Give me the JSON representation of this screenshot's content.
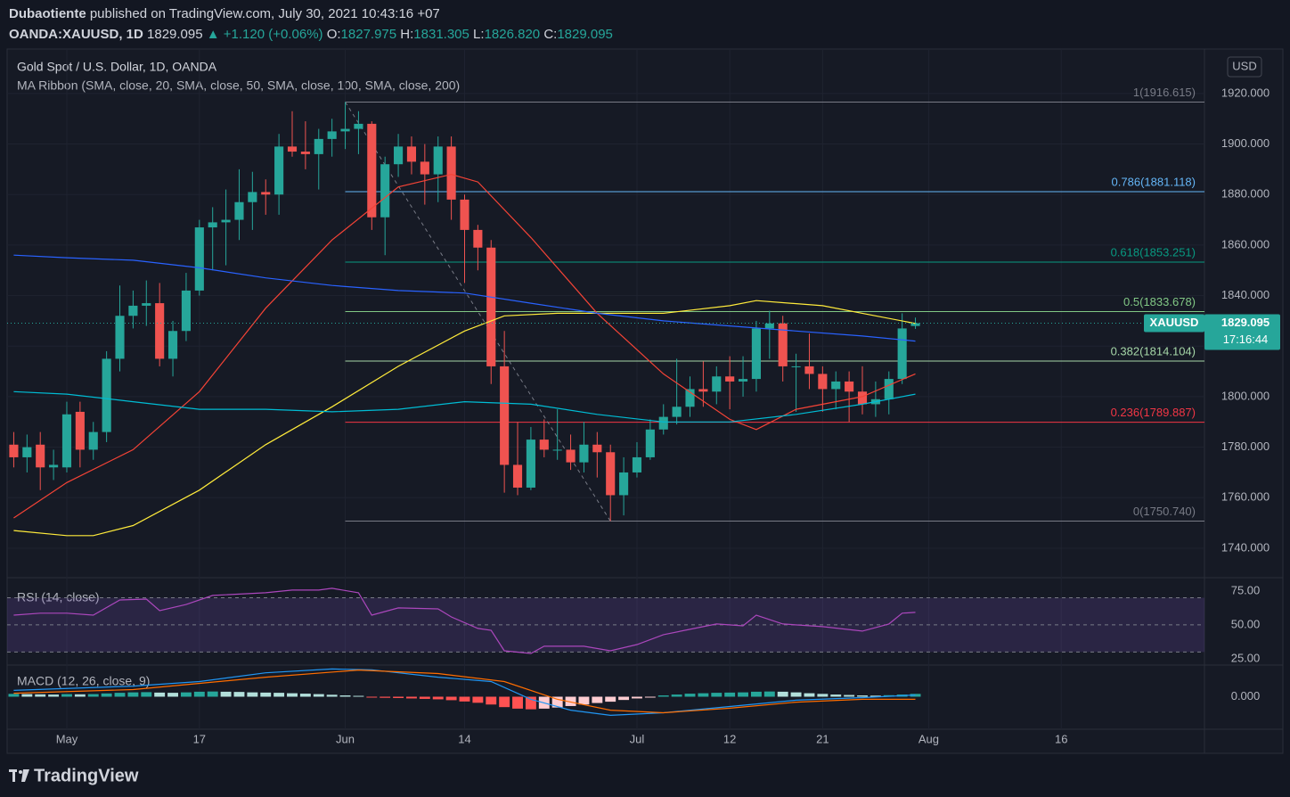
{
  "header": {
    "author": "Dubaotiente",
    "published": "published on TradingView.com, July 30, 2021 10:43:16 +07",
    "symbol": "OANDA:XAUUSD, 1D",
    "last": "1829.095",
    "change": "▲ +1.120 (+0.06%)",
    "ohlc": [
      {
        "key": "O:",
        "value": "1827.975"
      },
      {
        "key": "H:",
        "value": "1831.305"
      },
      {
        "key": "L:",
        "value": "1826.820"
      },
      {
        "key": "C:",
        "value": "1829.095"
      }
    ]
  },
  "footer": {
    "logo": "TradingView"
  },
  "chart_data": [
    {
      "type": "candlestick",
      "title": "Gold Spot / U.S. Dollar, 1D, OANDA",
      "subtitle": "MA Ribbon (SMA, close, 20, SMA, close, 50, SMA, close, 100, SMA, close, 200)",
      "currency": "USD",
      "up_color": "#26a69a",
      "down_color": "#ef5350",
      "grid": true,
      "xlim": [
        0.5,
        90.8
      ],
      "ylim": [
        1729.4,
        1937.6
      ],
      "yticks": [
        {
          "value": 1740,
          "label": "1740.000"
        },
        {
          "value": 1760,
          "label": "1760.000"
        },
        {
          "value": 1780,
          "label": "1780.000"
        },
        {
          "value": 1800,
          "label": "1800.000"
        },
        {
          "value": 1820,
          "label": "1820.000"
        },
        {
          "value": 1840,
          "label": "1840.000"
        },
        {
          "value": 1860,
          "label": "1860.000"
        },
        {
          "value": 1880,
          "label": "1880.000"
        },
        {
          "value": 1900,
          "label": "1900.000"
        },
        {
          "value": 1920,
          "label": "1920.000"
        }
      ],
      "x": [
        1,
        2,
        3,
        4,
        5,
        6,
        7,
        8,
        9,
        10,
        11,
        12,
        13,
        14,
        15,
        16,
        17,
        18,
        19,
        20,
        21,
        22,
        23,
        24,
        25,
        26,
        27,
        28,
        29,
        30,
        31,
        32,
        33,
        34,
        35,
        36,
        37,
        38,
        39,
        40,
        41,
        42,
        43,
        44,
        45,
        46,
        47,
        48,
        49,
        50,
        51,
        52,
        53,
        54,
        55,
        56,
        57,
        58,
        59,
        60,
        61,
        62,
        63,
        64,
        65,
        66,
        67,
        68,
        69
      ],
      "candles": [
        {
          "o": 1781,
          "h": 1786,
          "l": 1772,
          "c": 1776
        },
        {
          "o": 1776,
          "h": 1785,
          "l": 1770,
          "c": 1780
        },
        {
          "o": 1781,
          "h": 1786,
          "l": 1763,
          "c": 1772
        },
        {
          "o": 1772,
          "h": 1779,
          "l": 1767,
          "c": 1773
        },
        {
          "o": 1772,
          "h": 1798,
          "l": 1770,
          "c": 1793
        },
        {
          "o": 1794,
          "h": 1798,
          "l": 1772,
          "c": 1779
        },
        {
          "o": 1779,
          "h": 1790,
          "l": 1775,
          "c": 1786
        },
        {
          "o": 1786,
          "h": 1818,
          "l": 1782,
          "c": 1815
        },
        {
          "o": 1815,
          "h": 1844,
          "l": 1810,
          "c": 1832
        },
        {
          "o": 1832,
          "h": 1842,
          "l": 1827,
          "c": 1836
        },
        {
          "o": 1836,
          "h": 1846,
          "l": 1828,
          "c": 1837
        },
        {
          "o": 1837,
          "h": 1845,
          "l": 1812,
          "c": 1815
        },
        {
          "o": 1815,
          "h": 1830,
          "l": 1808,
          "c": 1826
        },
        {
          "o": 1826,
          "h": 1849,
          "l": 1822,
          "c": 1842
        },
        {
          "o": 1842,
          "h": 1870,
          "l": 1840,
          "c": 1867
        },
        {
          "o": 1867,
          "h": 1875,
          "l": 1850,
          "c": 1869
        },
        {
          "o": 1869,
          "h": 1882,
          "l": 1852,
          "c": 1870
        },
        {
          "o": 1870,
          "h": 1890,
          "l": 1862,
          "c": 1877
        },
        {
          "o": 1877,
          "h": 1889,
          "l": 1866,
          "c": 1881
        },
        {
          "o": 1881,
          "h": 1886,
          "l": 1872,
          "c": 1880
        },
        {
          "o": 1880,
          "h": 1904,
          "l": 1872,
          "c": 1899
        },
        {
          "o": 1899,
          "h": 1913,
          "l": 1895,
          "c": 1897
        },
        {
          "o": 1897,
          "h": 1909,
          "l": 1890,
          "c": 1896
        },
        {
          "o": 1896,
          "h": 1906,
          "l": 1882,
          "c": 1902
        },
        {
          "o": 1902,
          "h": 1910,
          "l": 1895,
          "c": 1905
        },
        {
          "o": 1905,
          "h": 1916.615,
          "l": 1898,
          "c": 1906
        },
        {
          "o": 1906,
          "h": 1913,
          "l": 1896,
          "c": 1908
        },
        {
          "o": 1908,
          "h": 1909,
          "l": 1866,
          "c": 1871
        },
        {
          "o": 1871,
          "h": 1895,
          "l": 1856,
          "c": 1892
        },
        {
          "o": 1892,
          "h": 1904,
          "l": 1887,
          "c": 1899
        },
        {
          "o": 1899,
          "h": 1903,
          "l": 1888,
          "c": 1893
        },
        {
          "o": 1893,
          "h": 1900,
          "l": 1876,
          "c": 1888
        },
        {
          "o": 1888,
          "h": 1903,
          "l": 1877,
          "c": 1899
        },
        {
          "o": 1899,
          "h": 1903,
          "l": 1870,
          "c": 1878
        },
        {
          "o": 1878,
          "h": 1880,
          "l": 1845,
          "c": 1866
        },
        {
          "o": 1866,
          "h": 1868,
          "l": 1850,
          "c": 1859
        },
        {
          "o": 1859,
          "h": 1862,
          "l": 1805,
          "c": 1812
        },
        {
          "o": 1812,
          "h": 1826,
          "l": 1762,
          "c": 1773
        },
        {
          "o": 1773,
          "h": 1790,
          "l": 1761,
          "c": 1764
        },
        {
          "o": 1764,
          "h": 1788,
          "l": 1763,
          "c": 1783
        },
        {
          "o": 1783,
          "h": 1791,
          "l": 1776,
          "c": 1779
        },
        {
          "o": 1779,
          "h": 1795,
          "l": 1775,
          "c": 1779
        },
        {
          "o": 1779,
          "h": 1785,
          "l": 1771,
          "c": 1774
        },
        {
          "o": 1774,
          "h": 1790,
          "l": 1770,
          "c": 1781
        },
        {
          "o": 1781,
          "h": 1786,
          "l": 1768,
          "c": 1778
        },
        {
          "o": 1778,
          "h": 1781,
          "l": 1750.74,
          "c": 1761
        },
        {
          "o": 1761,
          "h": 1776,
          "l": 1753,
          "c": 1770
        },
        {
          "o": 1770,
          "h": 1782,
          "l": 1768,
          "c": 1776
        },
        {
          "o": 1776,
          "h": 1791,
          "l": 1775,
          "c": 1787
        },
        {
          "o": 1787,
          "h": 1797,
          "l": 1785,
          "c": 1792
        },
        {
          "o": 1792,
          "h": 1815,
          "l": 1789,
          "c": 1796
        },
        {
          "o": 1796,
          "h": 1808,
          "l": 1792,
          "c": 1803
        },
        {
          "o": 1803,
          "h": 1814,
          "l": 1796,
          "c": 1802
        },
        {
          "o": 1802,
          "h": 1812,
          "l": 1797,
          "c": 1808
        },
        {
          "o": 1808,
          "h": 1816,
          "l": 1795,
          "c": 1806
        },
        {
          "o": 1806,
          "h": 1816,
          "l": 1800,
          "c": 1807
        },
        {
          "o": 1807,
          "h": 1830,
          "l": 1802,
          "c": 1827
        },
        {
          "o": 1827,
          "h": 1834,
          "l": 1815,
          "c": 1829
        },
        {
          "o": 1829,
          "h": 1832,
          "l": 1806,
          "c": 1812
        },
        {
          "o": 1812,
          "h": 1817,
          "l": 1794,
          "c": 1812
        },
        {
          "o": 1812,
          "h": 1825,
          "l": 1803,
          "c": 1809
        },
        {
          "o": 1809,
          "h": 1812,
          "l": 1794,
          "c": 1803
        },
        {
          "o": 1803,
          "h": 1810,
          "l": 1795,
          "c": 1806
        },
        {
          "o": 1806,
          "h": 1810,
          "l": 1790,
          "c": 1802
        },
        {
          "o": 1802,
          "h": 1812,
          "l": 1793,
          "c": 1797
        },
        {
          "o": 1797,
          "h": 1806,
          "l": 1792,
          "c": 1799
        },
        {
          "o": 1799,
          "h": 1810,
          "l": 1793,
          "c": 1807
        },
        {
          "o": 1807,
          "h": 1833,
          "l": 1805,
          "c": 1827
        },
        {
          "o": 1827.975,
          "h": 1831.305,
          "l": 1826.82,
          "c": 1829.095
        }
      ],
      "series": [
        {
          "color": "#f44336",
          "x": [
            1,
            5,
            10,
            15,
            20,
            25,
            30,
            34,
            36,
            40,
            45,
            50,
            55,
            57,
            60,
            65,
            69
          ],
          "values": [
            1752,
            1766,
            1779,
            1802,
            1835,
            1862,
            1883,
            1888,
            1885,
            1863,
            1833,
            1809,
            1791,
            1787,
            1795,
            1800,
            1809
          ]
        },
        {
          "color": "#ffeb3b",
          "x": [
            1,
            5,
            7,
            10,
            15,
            20,
            25,
            30,
            35,
            38,
            42,
            50,
            55,
            57,
            62,
            66,
            69
          ],
          "values": [
            1747,
            1745,
            1745,
            1749,
            1763,
            1781,
            1796,
            1812,
            1826,
            1832,
            1833,
            1833,
            1836,
            1838,
            1836,
            1832,
            1829
          ]
        },
        {
          "color": "#00bcd4",
          "x": [
            1,
            5,
            10,
            15,
            20,
            25,
            30,
            35,
            40,
            45,
            50,
            55,
            60,
            65,
            69
          ],
          "values": [
            1802,
            1801,
            1798,
            1795,
            1795,
            1794,
            1795,
            1798,
            1797,
            1793,
            1790,
            1790,
            1793,
            1797,
            1801
          ]
        },
        {
          "color": "#2962ff",
          "x": [
            1,
            5,
            10,
            15,
            20,
            25,
            30,
            35,
            40,
            45,
            50,
            55,
            60,
            65,
            69
          ],
          "values": [
            1856,
            1855,
            1854,
            1851,
            1847,
            1844,
            1842,
            1841,
            1837,
            1833,
            1830,
            1828,
            1826,
            1824,
            1822
          ]
        }
      ],
      "fib": {
        "x": [
          26,
          46
        ],
        "levels": [
          {
            "price": 1916.615,
            "label": "1(1916.615)",
            "color": "#787b86"
          },
          {
            "price": 1881.118,
            "label": "0.786(1881.118)",
            "color": "#64b5f6"
          },
          {
            "price": 1853.251,
            "label": "0.618(1853.251)",
            "color": "#089981"
          },
          {
            "price": 1833.678,
            "label": "0.5(1833.678)",
            "color": "#81c784"
          },
          {
            "price": 1814.104,
            "label": "0.382(1814.104)",
            "color": "#a5d6a7"
          },
          {
            "price": 1789.887,
            "label": "0.236(1789.887)",
            "color": "#f23645"
          },
          {
            "price": 1750.74,
            "label": "0(1750.740)",
            "color": "#787b86"
          }
        ]
      },
      "price_tag": {
        "symbol": "XAUUSD",
        "price": 1829.095,
        "countdown": "17:16:44",
        "color": "#26a69a"
      }
    },
    {
      "type": "line",
      "title": "RSI (14, close)",
      "color": "#ab47bc",
      "band": [
        30,
        70
      ],
      "band_lines": [
        70,
        50,
        30
      ],
      "xlim": [
        0.5,
        90.8
      ],
      "ylim": [
        21,
        83.5
      ],
      "yticks": [
        {
          "value": 25,
          "label": "25.00"
        },
        {
          "value": 50,
          "label": "50.00"
        },
        {
          "value": 75,
          "label": "75.00"
        }
      ],
      "x": [
        1,
        3,
        5,
        7,
        9,
        11,
        12,
        14,
        16,
        20,
        22,
        24,
        25,
        27,
        28,
        30,
        33,
        34,
        36,
        37,
        38,
        40,
        41,
        44,
        46,
        48,
        50,
        52,
        54,
        56,
        57,
        59,
        62,
        65,
        67,
        68,
        69
      ],
      "values": [
        57.2,
        58.6,
        58.6,
        57.2,
        68.4,
        69,
        60.5,
        65,
        71.7,
        73.7,
        75.7,
        75.7,
        77,
        73.7,
        57.2,
        62.5,
        61.8,
        55.9,
        47.4,
        46,
        30.9,
        28.9,
        34.2,
        34.2,
        30.9,
        35.5,
        42.8,
        46.7,
        50.7,
        49.3,
        57.2,
        50.7,
        48.7,
        45.4,
        50.7,
        58.6,
        59.2
      ]
    },
    {
      "type": "macd",
      "title": "MACD (12, 26, close, 9)",
      "xlim": [
        0.5,
        90.8
      ],
      "ylim": [
        -15,
        15
      ],
      "yticks": [
        {
          "value": 0,
          "label": "0.000"
        }
      ],
      "xticks": [
        {
          "value": 5,
          "label": "May"
        },
        {
          "value": 15,
          "label": "17"
        },
        {
          "value": 26,
          "label": "Jun"
        },
        {
          "value": 35,
          "label": "14"
        },
        {
          "value": 48,
          "label": "Jul"
        },
        {
          "value": 55,
          "label": "12"
        },
        {
          "value": 62,
          "label": "21"
        },
        {
          "value": 70,
          "label": "Aug"
        },
        {
          "value": 80,
          "label": "16"
        }
      ],
      "histogram_colors": {
        "up_rising": "#26a69a",
        "up_falling": "#b2dfdb",
        "down_falling": "#ff5252",
        "down_rising": "#ffcdd2"
      },
      "x": [
        1,
        2,
        3,
        4,
        5,
        6,
        7,
        8,
        9,
        10,
        11,
        12,
        13,
        14,
        15,
        16,
        17,
        18,
        19,
        20,
        21,
        22,
        23,
        24,
        25,
        26,
        27,
        28,
        29,
        30,
        31,
        32,
        33,
        34,
        35,
        36,
        37,
        38,
        39,
        40,
        41,
        42,
        43,
        44,
        45,
        46,
        47,
        48,
        49,
        50,
        51,
        52,
        53,
        54,
        55,
        56,
        57,
        58,
        59,
        60,
        61,
        62,
        63,
        64,
        65,
        66,
        67,
        68,
        69
      ],
      "histogram": [
        1.3,
        1.2,
        1.1,
        1.0,
        1.2,
        1.1,
        1.2,
        1.5,
        1.8,
        2.0,
        2.1,
        1.9,
        1.8,
        2.0,
        2.3,
        2.4,
        2.3,
        2.2,
        2.0,
        1.9,
        1.8,
        1.6,
        1.4,
        1.2,
        0.9,
        0.6,
        0.4,
        -0.3,
        -0.5,
        -0.6,
        -0.8,
        -1.0,
        -1.2,
        -1.6,
        -2.2,
        -2.8,
        -3.6,
        -4.8,
        -5.5,
        -5.8,
        -5.5,
        -5.0,
        -4.3,
        -3.6,
        -2.9,
        -2.3,
        -1.5,
        -0.8,
        -0.1,
        0.6,
        1.0,
        1.4,
        1.6,
        1.8,
        1.9,
        2.0,
        2.3,
        2.4,
        2.3,
        2.0,
        1.6,
        1.3,
        1.0,
        0.8,
        0.6,
        0.5,
        0.7,
        1.0,
        1.3
      ],
      "series": [
        {
          "color": "#2196f3",
          "x": [
            1,
            10,
            15,
            20,
            25,
            28,
            33,
            37,
            40,
            43,
            46,
            50,
            55,
            60,
            65,
            69
          ],
          "values": [
            2.9,
            4.9,
            7,
            11,
            12.8,
            12.4,
            9,
            7,
            -1.2,
            -6.2,
            -8.6,
            -7.4,
            -4.5,
            -1.6,
            -0.4,
            0.8
          ]
        },
        {
          "color": "#ff6d00",
          "x": [
            1,
            10,
            20,
            27,
            33,
            38,
            42,
            46,
            50,
            55,
            60,
            65,
            69
          ],
          "values": [
            1.6,
            3.3,
            9,
            12.3,
            10.7,
            7,
            -1.2,
            -6.2,
            -7.4,
            -5.3,
            -2.5,
            -1.2,
            -1.2
          ]
        }
      ]
    }
  ]
}
